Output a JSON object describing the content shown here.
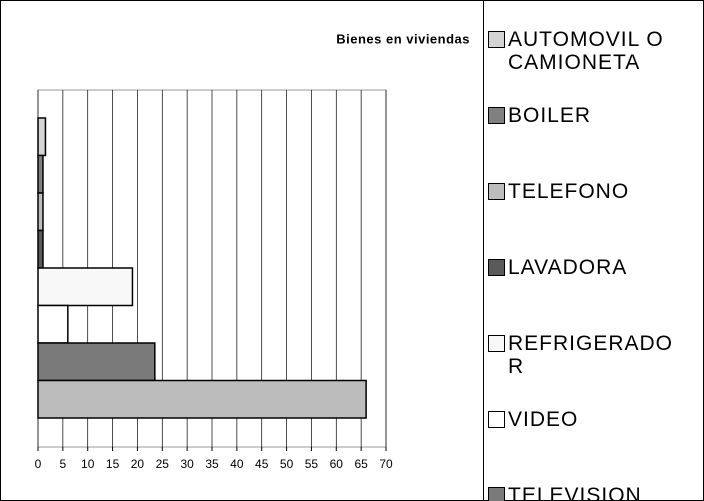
{
  "chart_data": {
    "type": "bar",
    "orientation": "horizontal",
    "title": "Bienes en viviendas",
    "series": [
      {
        "name": "AUTOMOVIL O CAMIONETA",
        "color": "#d4d4d4",
        "values": [
          1.5
        ]
      },
      {
        "name": "BOILER",
        "color": "#808080",
        "values": [
          1
        ]
      },
      {
        "name": "TELEFONO",
        "color": "#bdbdbd",
        "values": [
          1
        ]
      },
      {
        "name": "LAVADORA",
        "color": "#5a5a5a",
        "values": [
          1
        ]
      },
      {
        "name": "REFRIGERADOR",
        "color": "#f8f8f8",
        "values": [
          19
        ]
      },
      {
        "name": "VIDEO",
        "color": "#ffffff",
        "values": [
          6
        ]
      },
      {
        "name": "TELEVISION",
        "color": "#7a7a7a",
        "values": [
          23.5
        ]
      },
      {
        "name": null,
        "color": "#bcbcbc",
        "values": [
          66
        ]
      }
    ],
    "xlim": [
      0,
      70
    ],
    "xticks": [
      0,
      5,
      10,
      15,
      20,
      25,
      30,
      35,
      40,
      45,
      50,
      55,
      60,
      65,
      70
    ],
    "grid": true,
    "legend": "right"
  }
}
